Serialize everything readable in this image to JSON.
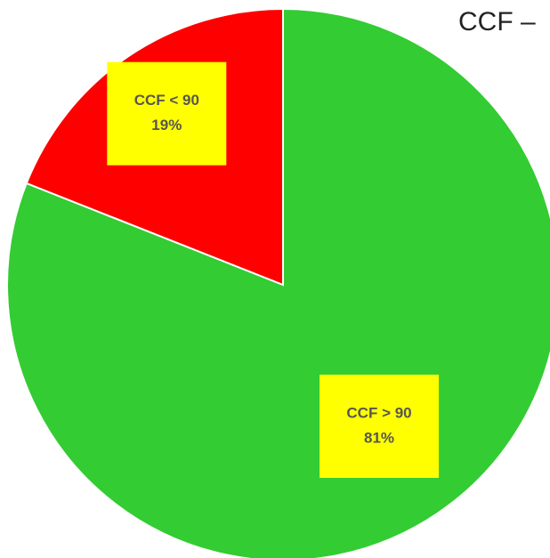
{
  "chart_data": {
    "type": "pie",
    "title": "CCF –",
    "categories": [
      "CCF > 90",
      "CCF < 90"
    ],
    "values": [
      81,
      19
    ],
    "value_labels": [
      "81%",
      "19%"
    ],
    "colors": [
      "#33cc33",
      "#ff0000"
    ],
    "label_color": "#ffff00"
  }
}
